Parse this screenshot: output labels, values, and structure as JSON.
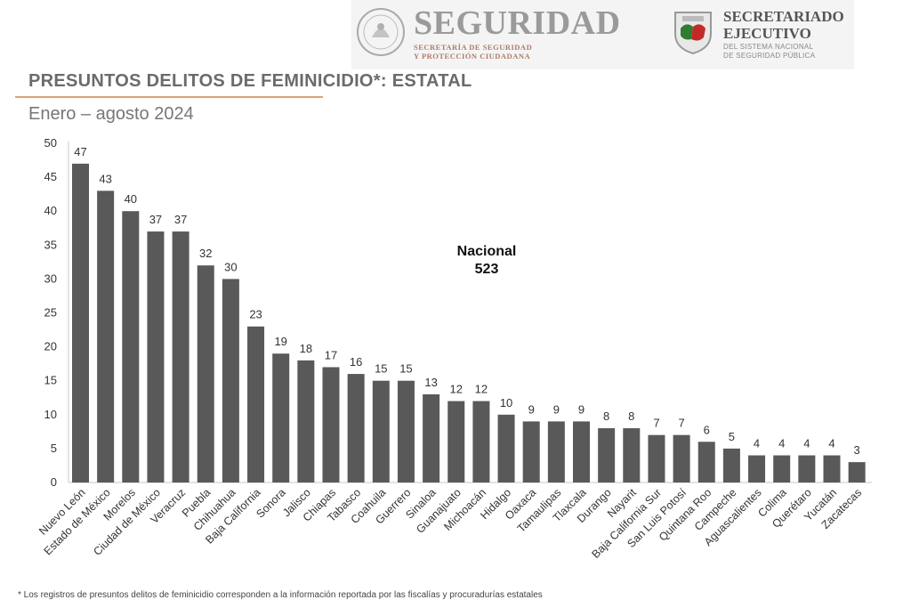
{
  "header": {
    "seguridad_title": "SEGURIDAD",
    "seguridad_sub_line1": "SECRETARÍA DE SEGURIDAD",
    "seguridad_sub_line2": "Y PROTECCIÓN CIUDADANA",
    "sesnsp_line1": "SECRETARIADO",
    "sesnsp_line2": "EJECUTIVO",
    "sesnsp_sub_line1": "DEL SISTEMA NACIONAL",
    "sesnsp_sub_line2": "DE SEGURIDAD PÚBLICA"
  },
  "colors": {
    "bar": "#595959",
    "accent_rule": "#d9a27a",
    "shield_green": "#2e7d32",
    "shield_red": "#c62828"
  },
  "chart_data": {
    "type": "bar",
    "title": "PRESUNTOS DELITOS DE FEMINICIDIO*: ESTATAL",
    "subtitle": "Enero – agosto 2024",
    "annotation_label": "Nacional",
    "annotation_value": "523",
    "ylim": [
      0,
      50
    ],
    "yticks": [
      0,
      5,
      10,
      15,
      20,
      25,
      30,
      35,
      40,
      45,
      50
    ],
    "grid": false,
    "categories": [
      "Nuevo León",
      "Estado de México",
      "Morelos",
      "Ciudad de México",
      "Veracruz",
      "Puebla",
      "Chihuahua",
      "Baja California",
      "Sonora",
      "Jalisco",
      "Chiapas",
      "Tabasco",
      "Coahuila",
      "Guerrero",
      "Sinaloa",
      "Guanajuato",
      "Michoacán",
      "Hidalgo",
      "Oaxaca",
      "Tamaulipas",
      "Tlaxcala",
      "Durango",
      "Nayarit",
      "Baja California Sur",
      "San Luis Potosí",
      "Quintana Roo",
      "Campeche",
      "Aguascalientes",
      "Colima",
      "Querétaro",
      "Yucatán",
      "Zacatecas"
    ],
    "values": [
      47,
      43,
      40,
      37,
      37,
      32,
      30,
      23,
      19,
      18,
      17,
      16,
      15,
      15,
      13,
      12,
      12,
      10,
      9,
      9,
      9,
      8,
      8,
      7,
      7,
      6,
      5,
      4,
      4,
      4,
      4,
      3
    ]
  },
  "footnote": "* Los registros de presuntos delitos de feminicidio corresponden a la información reportada por las fiscalías y procuradurías estatales"
}
